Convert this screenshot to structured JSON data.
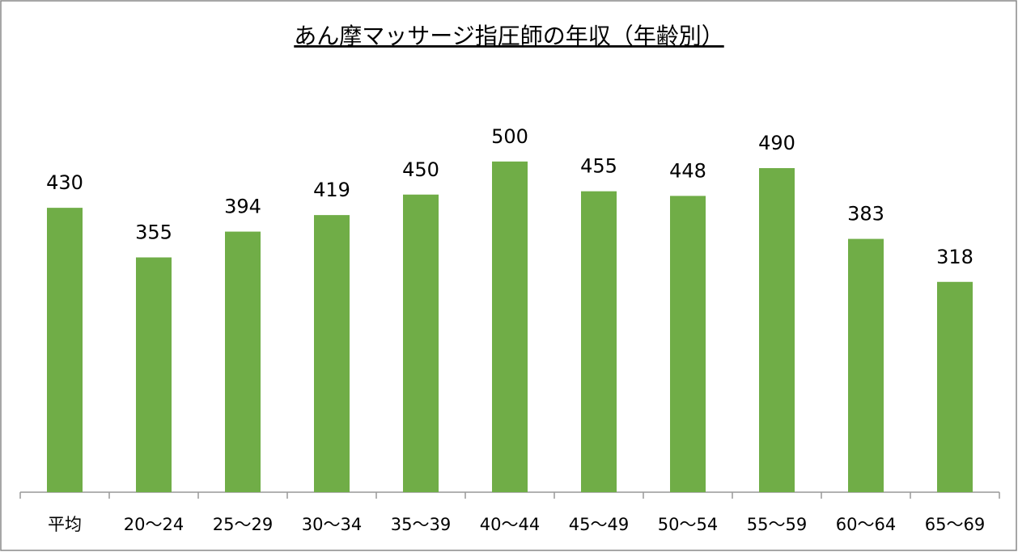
{
  "chart_data": {
    "type": "bar",
    "title": "あん摩マッサージ指圧師の年収（年齢別）",
    "categories": [
      "平均",
      "20～24",
      "25～29",
      "30～34",
      "35～39",
      "40～44",
      "45～49",
      "50～54",
      "55～59",
      "60～64",
      "65～69"
    ],
    "values": [
      430,
      355,
      394,
      419,
      450,
      500,
      455,
      448,
      490,
      383,
      318
    ],
    "color": "#70ad47",
    "ylim": [
      0,
      600
    ]
  }
}
